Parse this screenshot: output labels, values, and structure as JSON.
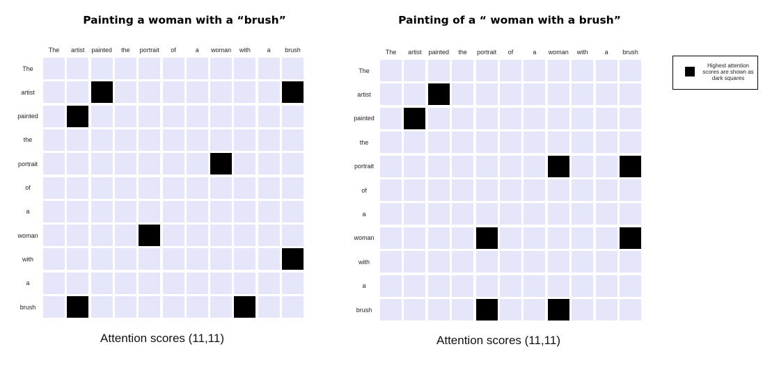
{
  "panels": [
    {
      "title": "Painting a woman with a “brush”",
      "columns": [
        "The",
        "artist",
        "painted",
        "the",
        "portrait",
        "of",
        "a",
        "woman",
        "with",
        "a",
        "brush"
      ],
      "rows": [
        "The",
        "artist",
        "painted",
        "the",
        "portrait",
        "of",
        "a",
        "woman",
        "with",
        "a",
        "brush"
      ],
      "highlights": [
        [
          1,
          2
        ],
        [
          1,
          10
        ],
        [
          2,
          1
        ],
        [
          4,
          7
        ],
        [
          7,
          4
        ],
        [
          8,
          10
        ],
        [
          10,
          1
        ],
        [
          10,
          8
        ]
      ],
      "caption": "Attention scores (11,11)"
    },
    {
      "title": "Painting of a “ woman with a brush”",
      "columns": [
        "The",
        "artist",
        "painted",
        "the",
        "portrait",
        "of",
        "a",
        "woman",
        "with",
        "a",
        "brush"
      ],
      "rows": [
        "The",
        "artist",
        "painted",
        "the",
        "portrait",
        "of",
        "a",
        "woman",
        "with",
        "a",
        "brush"
      ],
      "highlights": [
        [
          1,
          2
        ],
        [
          2,
          1
        ],
        [
          4,
          7
        ],
        [
          4,
          10
        ],
        [
          7,
          4
        ],
        [
          7,
          10
        ],
        [
          10,
          4
        ],
        [
          10,
          7
        ]
      ],
      "caption": "Attention scores (11,11)"
    }
  ],
  "legend": {
    "text": "Highest attention scores are shown as dark squares"
  },
  "colors": {
    "cell": "#e6e6fa",
    "highlight": "#000000"
  }
}
